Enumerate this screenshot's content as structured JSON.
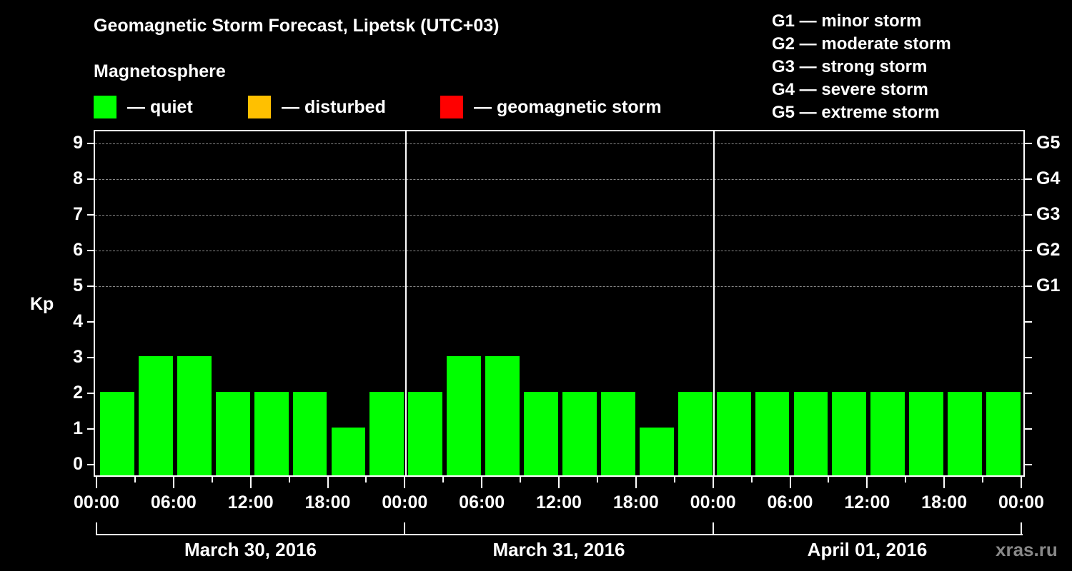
{
  "header": {
    "title": "Geomagnetic Storm Forecast, Lipetsk (UTC+03)",
    "subtitle": "Magnetosphere",
    "legend": [
      {
        "label": "— quiet",
        "color": "#00ff00"
      },
      {
        "label": "— disturbed",
        "color": "#ffc000"
      },
      {
        "label": "— geomagnetic storm",
        "color": "#ff0000"
      }
    ],
    "storm_scale": [
      "G1 — minor storm",
      "G2 — moderate storm",
      "G3 — strong storm",
      "G4 — severe storm",
      "G5 — extreme storm"
    ]
  },
  "axes": {
    "ylabel": "Kp",
    "yticks": [
      "0",
      "1",
      "2",
      "3",
      "4",
      "5",
      "6",
      "7",
      "8",
      "9"
    ],
    "gticks": [
      {
        "label": "G1",
        "kp": 5
      },
      {
        "label": "G2",
        "kp": 6
      },
      {
        "label": "G3",
        "kp": 7
      },
      {
        "label": "G4",
        "kp": 8
      },
      {
        "label": "G5",
        "kp": 9
      }
    ],
    "xticks": [
      "00:00",
      "06:00",
      "12:00",
      "18:00",
      "00:00",
      "06:00",
      "12:00",
      "18:00",
      "00:00",
      "06:00",
      "12:00",
      "18:00",
      "00:00"
    ],
    "dates": [
      "March 30, 2016",
      "March 31, 2016",
      "April 01, 2016"
    ]
  },
  "watermark": "xras.ru",
  "chart_data": {
    "type": "bar",
    "title": "Geomagnetic Storm Forecast, Lipetsk (UTC+03)",
    "xlabel": "",
    "ylabel": "Kp",
    "ylim": [
      0,
      9
    ],
    "grid": "dashed horizontal lines at Kp 5-9",
    "bar_color": "#00ff00",
    "categories": [
      "Mar 30 00-03",
      "Mar 30 03-06",
      "Mar 30 06-09",
      "Mar 30 09-12",
      "Mar 30 12-15",
      "Mar 30 15-18",
      "Mar 30 18-21",
      "Mar 30 21-24",
      "Mar 31 00-03",
      "Mar 31 03-06",
      "Mar 31 06-09",
      "Mar 31 09-12",
      "Mar 31 12-15",
      "Mar 31 15-18",
      "Mar 31 18-21",
      "Mar 31 21-24",
      "Apr 01 00-03",
      "Apr 01 03-06",
      "Apr 01 06-09",
      "Apr 01 09-12",
      "Apr 01 12-15",
      "Apr 01 15-18",
      "Apr 01 18-21",
      "Apr 01 21-24"
    ],
    "values": [
      2,
      3,
      3,
      2,
      2,
      2,
      1,
      2,
      2,
      3,
      3,
      2,
      2,
      2,
      1,
      2,
      2,
      2,
      2,
      2,
      2,
      2,
      2,
      2
    ],
    "status": "quiet",
    "legend": [
      "quiet",
      "disturbed",
      "geomagnetic storm"
    ],
    "secondary_axis": {
      "G1": 5,
      "G2": 6,
      "G3": 7,
      "G4": 8,
      "G5": 9
    }
  }
}
